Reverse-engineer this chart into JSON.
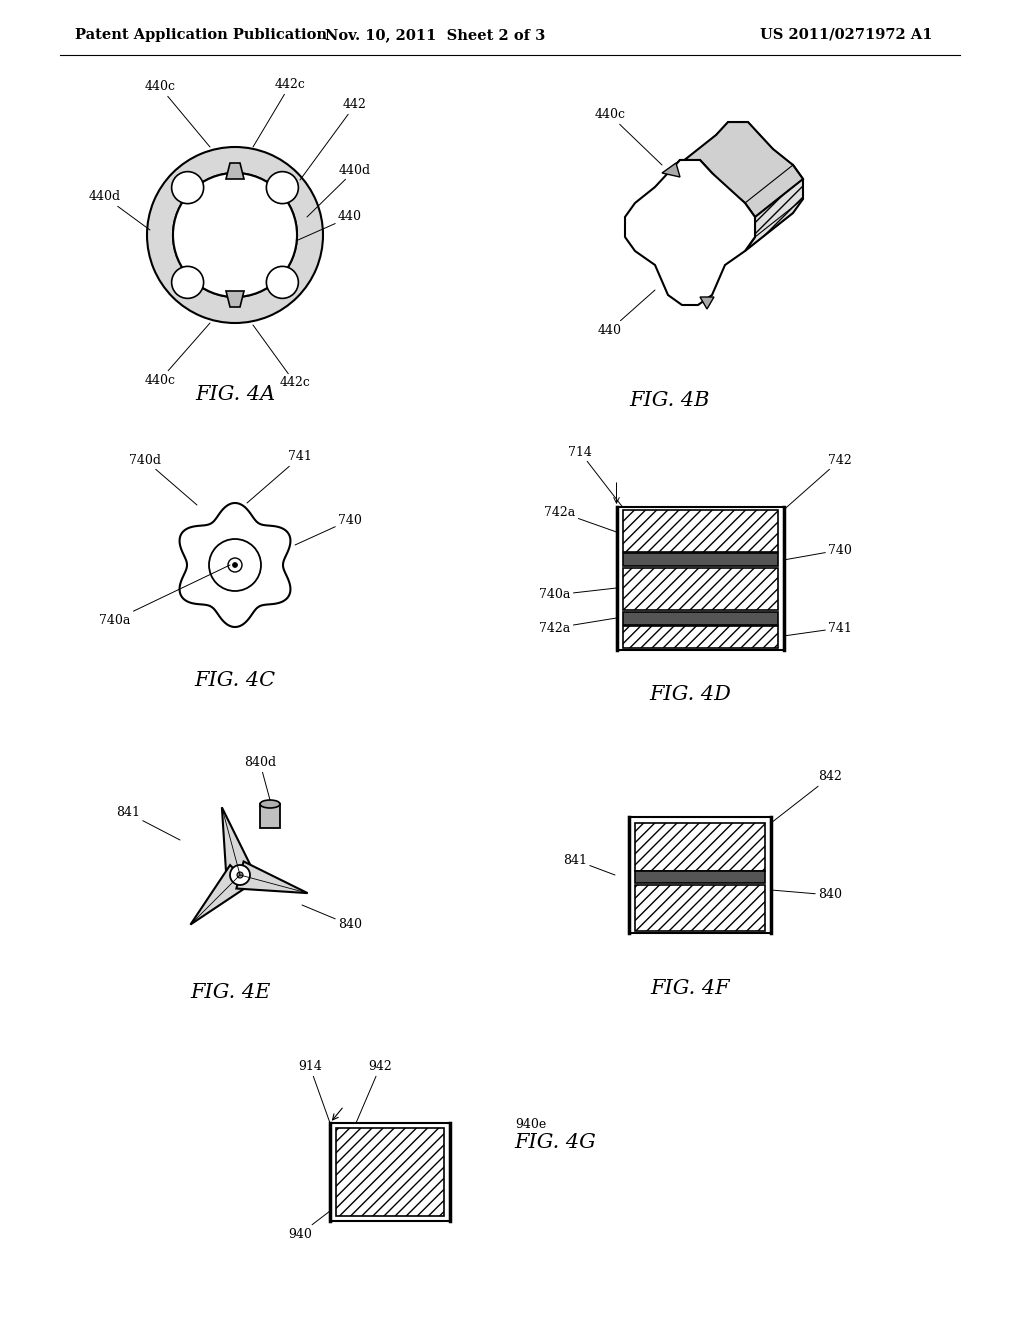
{
  "header_left": "Patent Application Publication",
  "header_mid": "Nov. 10, 2011  Sheet 2 of 3",
  "header_right": "US 2011/0271972 A1",
  "bg_color": "#ffffff",
  "line_color": "#000000",
  "fig_labels": [
    "FIG. 4A",
    "FIG. 4B",
    "FIG. 4C",
    "FIG. 4D",
    "FIG. 4E",
    "FIG. 4F",
    "FIG. 4G"
  ],
  "annotation_fontsize": 9,
  "fig_label_fontsize": 15,
  "header_fontsize": 10.5
}
